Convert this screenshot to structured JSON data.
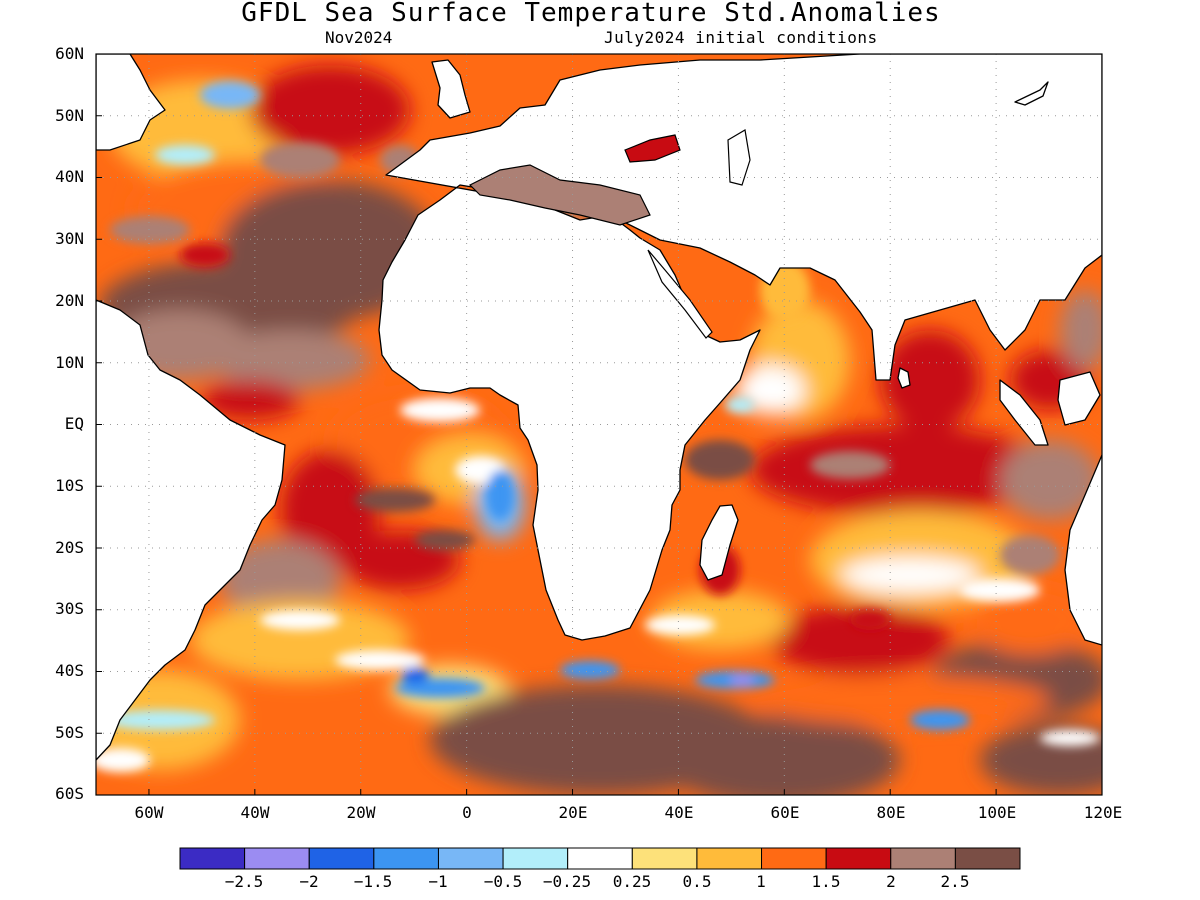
{
  "title": "GFDL Sea Surface Temperature Std.Anomalies",
  "forecast_month": "Nov2024",
  "initial_conditions": "July2024 initial conditions",
  "lat_ticks": [
    "60N",
    "50N",
    "40N",
    "30N",
    "20N",
    "10N",
    "EQ",
    "10S",
    "20S",
    "30S",
    "40S",
    "50S",
    "60S"
  ],
  "lon_ticks": [
    "60W",
    "40W",
    "20W",
    "0",
    "20E",
    "40E",
    "60E",
    "80E",
    "100E",
    "120E"
  ],
  "colorbar": {
    "colors": [
      "#3b2bc4",
      "#9b8cf2",
      "#1f63e6",
      "#3c95f2",
      "#78b7f6",
      "#b2eefa",
      "#ffffff",
      "#fde17a",
      "#ffbb3a",
      "#ff6a14",
      "#c80b12",
      "#ac8075",
      "#7a4e45"
    ],
    "labels": [
      "−2.5",
      "−2",
      "−1.5",
      "−1",
      "−0.5",
      "−0.25",
      "0.25",
      "0.5",
      "1",
      "1.5",
      "2",
      "2.5"
    ]
  },
  "map": {
    "lon_range": [
      -70,
      120
    ],
    "lat_range": [
      -60,
      60
    ],
    "grid": true,
    "colors": {
      "land": "#ffffff",
      "coast": "#000000",
      "grid": "#9a9a9a"
    }
  }
}
